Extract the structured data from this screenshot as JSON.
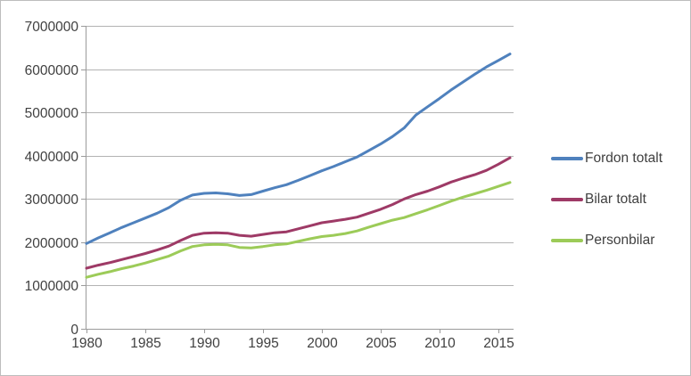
{
  "chart_data": {
    "type": "line",
    "x": [
      1980,
      1981,
      1982,
      1983,
      1984,
      1985,
      1986,
      1987,
      1988,
      1989,
      1990,
      1991,
      1992,
      1993,
      1994,
      1995,
      1996,
      1997,
      1998,
      1999,
      2000,
      2001,
      2002,
      2003,
      2004,
      2005,
      2006,
      2007,
      2008,
      2009,
      2010,
      2011,
      2012,
      2013,
      2014,
      2015,
      2016
    ],
    "series": [
      {
        "name": "Fordon totalt",
        "color": "#4F81BD",
        "values": [
          1970000,
          2100000,
          2220000,
          2340000,
          2450000,
          2560000,
          2670000,
          2800000,
          2970000,
          3090000,
          3130000,
          3140000,
          3120000,
          3080000,
          3100000,
          3180000,
          3260000,
          3330000,
          3430000,
          3540000,
          3650000,
          3750000,
          3860000,
          3970000,
          4120000,
          4270000,
          4440000,
          4640000,
          4940000,
          5130000,
          5320000,
          5520000,
          5700000,
          5880000,
          6050000,
          6200000,
          6350000
        ]
      },
      {
        "name": "Bilar totalt",
        "color": "#9E3A66",
        "values": [
          1400000,
          1470000,
          1530000,
          1600000,
          1670000,
          1740000,
          1820000,
          1910000,
          2040000,
          2160000,
          2210000,
          2220000,
          2210000,
          2160000,
          2140000,
          2180000,
          2220000,
          2240000,
          2310000,
          2380000,
          2450000,
          2490000,
          2530000,
          2580000,
          2670000,
          2760000,
          2870000,
          3000000,
          3100000,
          3180000,
          3280000,
          3390000,
          3480000,
          3560000,
          3660000,
          3800000,
          3950000
        ]
      },
      {
        "name": "Personbilar",
        "color": "#9CCB58",
        "values": [
          1190000,
          1260000,
          1320000,
          1390000,
          1450000,
          1520000,
          1600000,
          1680000,
          1800000,
          1900000,
          1940000,
          1950000,
          1940000,
          1880000,
          1870000,
          1900000,
          1940000,
          1960000,
          2020000,
          2080000,
          2130000,
          2160000,
          2200000,
          2260000,
          2350000,
          2430000,
          2510000,
          2570000,
          2660000,
          2750000,
          2850000,
          2950000,
          3040000,
          3120000,
          3200000,
          3290000,
          3380000
        ]
      }
    ],
    "xticks": [
      1980,
      1985,
      1990,
      1995,
      2000,
      2005,
      2010,
      2015
    ],
    "ylim": [
      0,
      7000000
    ],
    "ytick_step": 1000000,
    "grid": "horizontal",
    "legend_position": "right"
  },
  "colors": {
    "grid": "#b3b3b3",
    "axis": "#9b9b9b",
    "text": "#404040",
    "frame_border": "#bdbdbd",
    "background": "#ffffff"
  }
}
